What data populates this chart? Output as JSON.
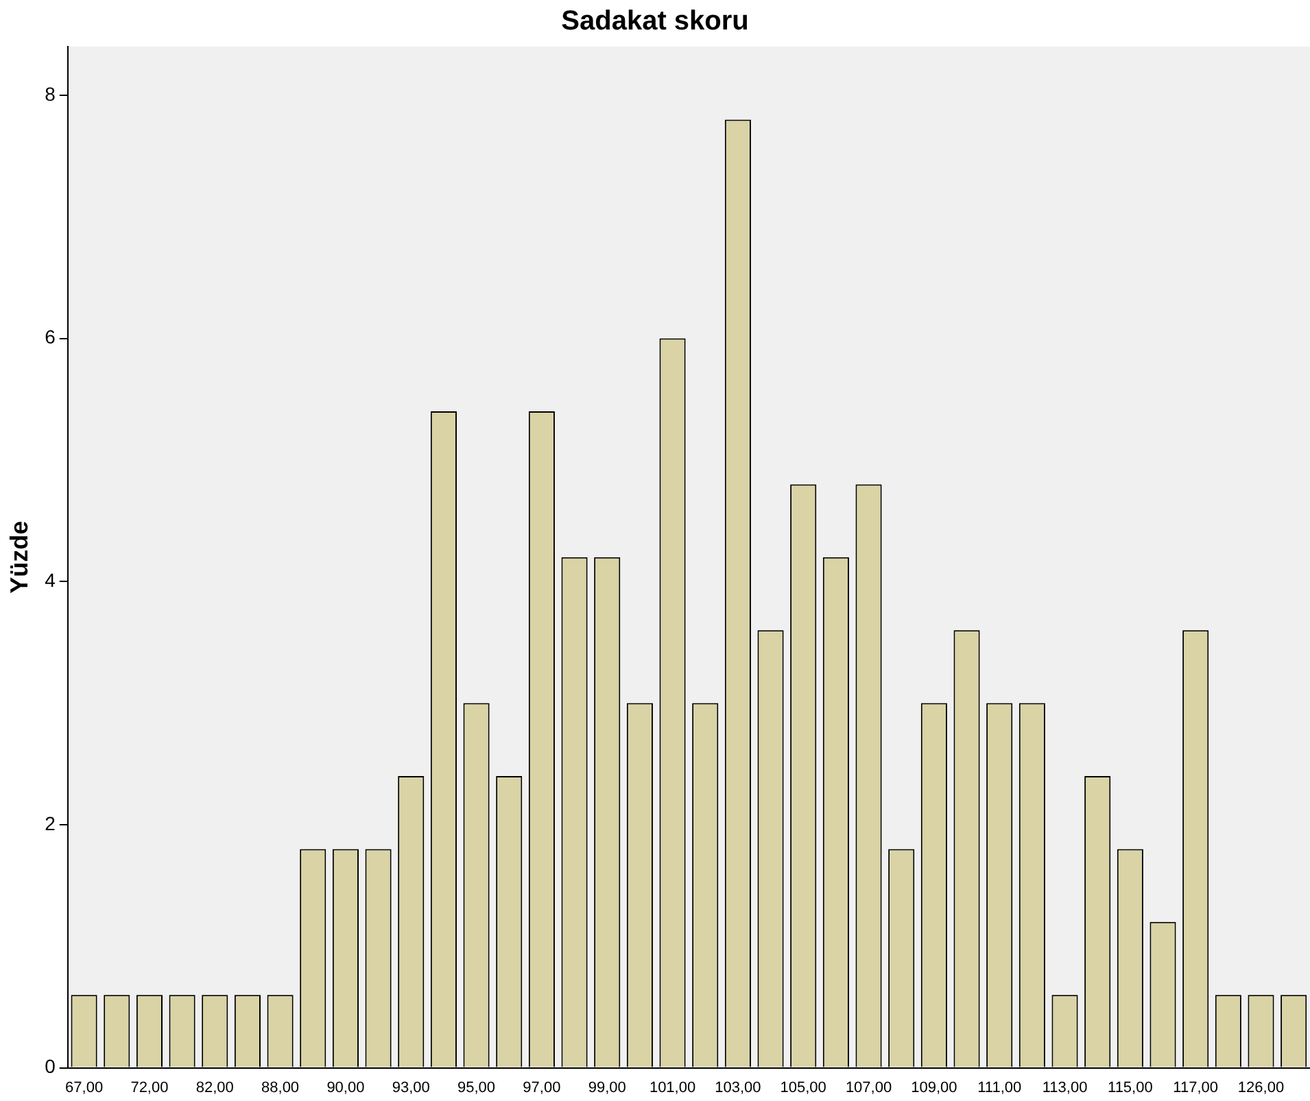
{
  "chart_data": {
    "type": "bar",
    "title": "Sadakat skoru",
    "ylabel": "Yüzde",
    "categories": [
      "67,00",
      null,
      "72,00",
      null,
      "82,00",
      null,
      "88,00",
      null,
      "90,00",
      null,
      "93,00",
      null,
      "95,00",
      null,
      "97,00",
      null,
      "99,00",
      null,
      "101,00",
      null,
      "103,00",
      null,
      "105,00",
      null,
      "107,00",
      null,
      "109,00",
      null,
      "111,00",
      null,
      "113,00",
      null,
      "115,00",
      null,
      "117,00",
      null,
      "126,00",
      null
    ],
    "values": [
      0.6,
      0.6,
      0.6,
      0.6,
      0.6,
      0.6,
      0.6,
      1.8,
      1.8,
      1.8,
      2.4,
      5.4,
      3.0,
      2.4,
      5.4,
      4.2,
      4.2,
      3.0,
      6.0,
      3.0,
      7.8,
      3.6,
      4.8,
      4.2,
      4.8,
      1.8,
      3.0,
      3.6,
      3.0,
      3.0,
      0.6,
      2.4,
      1.8,
      1.2,
      3.6,
      0.6,
      0.6,
      0.6
    ],
    "color": "#d9d3a5",
    "ylim": [
      0,
      8.4
    ],
    "yticks": [
      0,
      2,
      4,
      6,
      8
    ],
    "grid": false,
    "legend": false
  }
}
